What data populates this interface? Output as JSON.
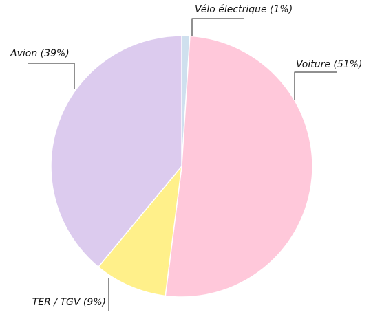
{
  "chart_data": {
    "type": "pie",
    "categories": [
      "Vélo électrique",
      "Voiture",
      "TER / TGV",
      "Avion"
    ],
    "values": [
      1,
      51,
      9,
      39
    ],
    "labels": [
      "Vélo électrique (1%)",
      "Voiture (51%)",
      "TER / TGV (9%)",
      "Avion (39%)"
    ],
    "colors": [
      "#cfe0ee",
      "#ffc8da",
      "#fff08a",
      "#dccbee"
    ]
  }
}
